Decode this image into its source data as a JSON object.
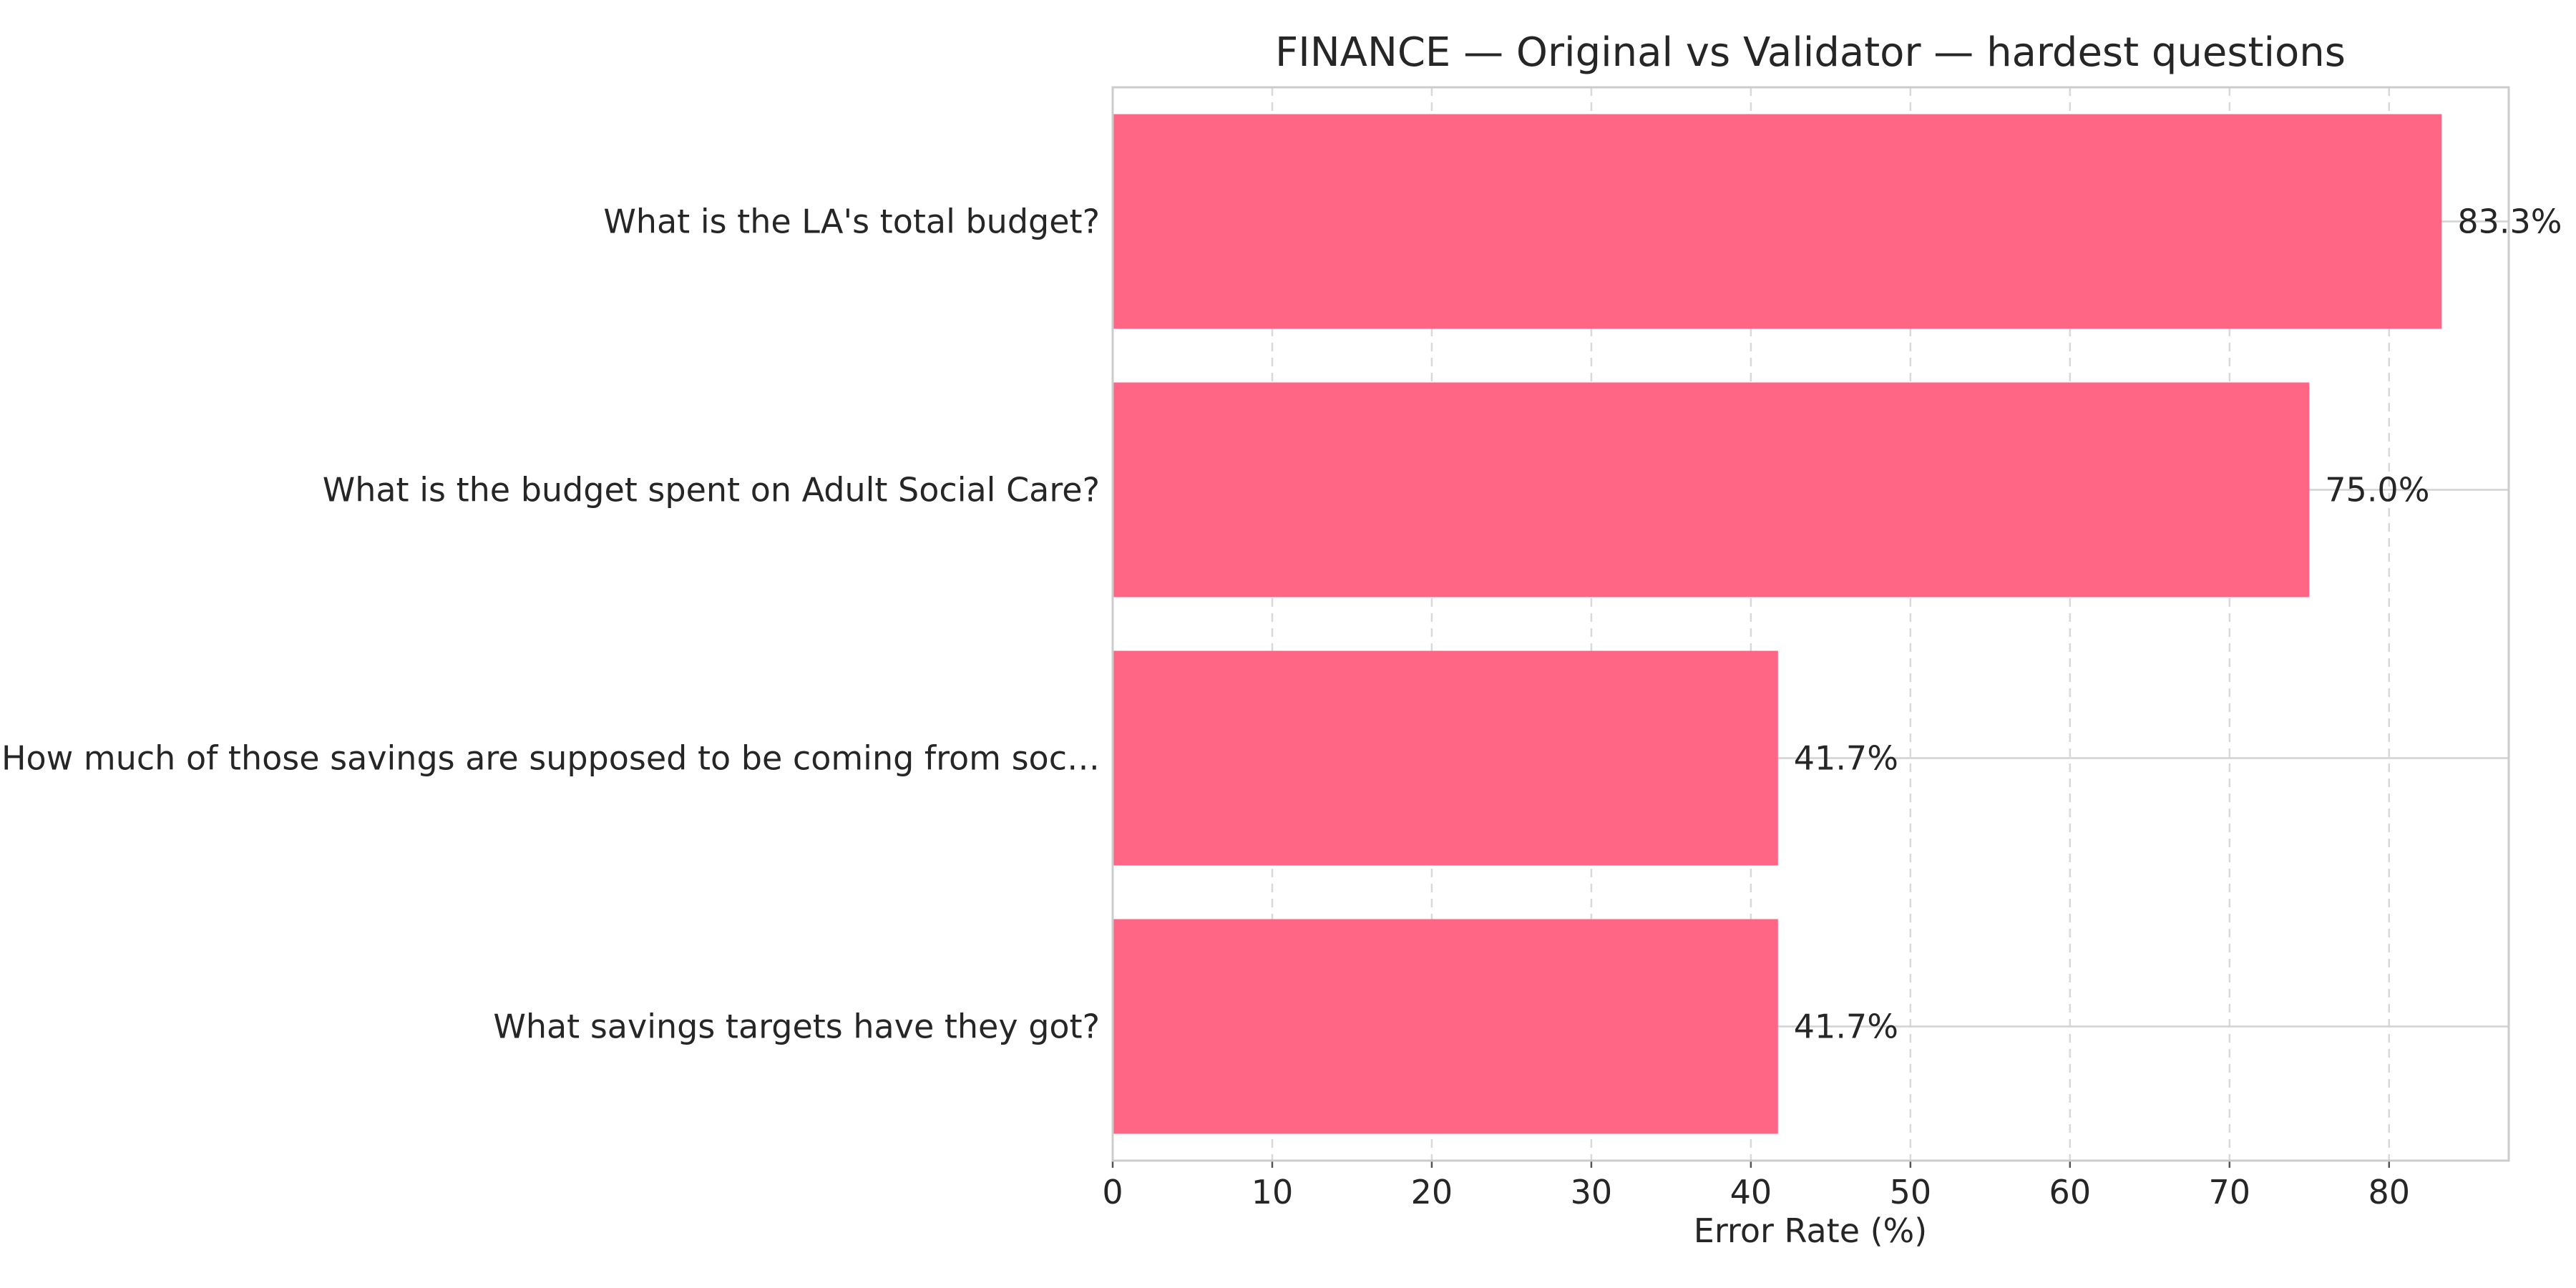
{
  "chart_data": {
    "type": "bar",
    "orientation": "horizontal",
    "title": "FINANCE — Original vs Validator — hardest questions",
    "xlabel": "Error Rate (%)",
    "ylabel": "",
    "categories": [
      "What is the LA's total budget?",
      "What is the budget spent on Adult Social Care?",
      "How much of those savings are supposed to be coming from soc…",
      "What savings targets have they got?"
    ],
    "values": [
      83.3,
      75.0,
      41.7,
      41.7
    ],
    "data_labels": [
      "83.3%",
      "75.0%",
      "41.7%",
      "41.7%"
    ],
    "xlim": [
      0,
      87.5
    ],
    "xticks": [
      "0",
      "10",
      "20",
      "30",
      "40",
      "50",
      "60",
      "70",
      "80"
    ],
    "bar_color": "#ff6584",
    "grid": "vertical dashed, horizontal solid"
  }
}
